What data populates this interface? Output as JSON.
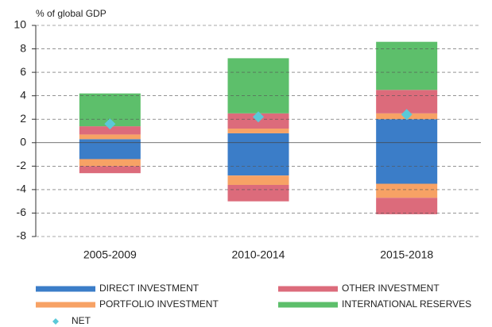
{
  "chart_data": {
    "type": "diverging-stacked-bar",
    "y_label": "% of global GDP",
    "categories": [
      "2005-2009",
      "2010-2014",
      "2015-2018"
    ],
    "series": [
      {
        "name": "DIRECT INVESTMENT",
        "color": "#3b7dc8",
        "values": [
          0.3,
          0.8,
          2.0
        ],
        "negative_values": [
          -1.4,
          -2.8,
          -3.5
        ]
      },
      {
        "name": "PORTFOLIO INVESTMENT",
        "color": "#f7a265",
        "values": [
          0.4,
          0.4,
          0.5
        ],
        "negative_values": [
          -0.6,
          -0.8,
          -1.2
        ]
      },
      {
        "name": "OTHER INVESTMENT",
        "color": "#dc6b7b",
        "values": [
          0.7,
          1.3,
          2.0
        ],
        "negative_values": [
          -0.6,
          -1.4,
          -1.4
        ]
      },
      {
        "name": "INTERNATIONAL RESERVES",
        "color": "#5dbf6b",
        "values": [
          2.8,
          4.7,
          4.1
        ]
      }
    ],
    "net": {
      "name": "NET",
      "color": "#5bc9d8",
      "values": [
        1.6,
        2.2,
        2.4
      ]
    },
    "ylim": [
      -8,
      10
    ],
    "yticks": [
      -8,
      -6,
      -4,
      -2,
      0,
      2,
      4,
      6,
      8,
      10
    ],
    "grid": true
  }
}
